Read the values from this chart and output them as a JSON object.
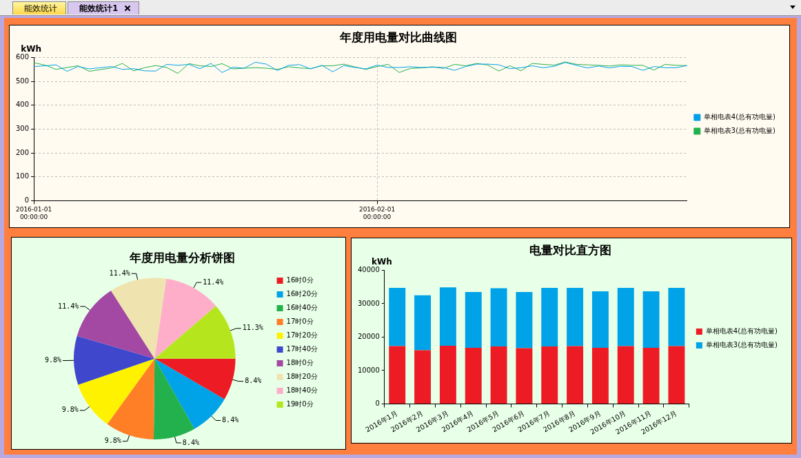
{
  "chart_data": [
    {
      "type": "other",
      "annotations": [
        "能效统计",
        "能效统计1"
      ]
    },
    {
      "type": "line",
      "title": "年度用电量对比曲线图",
      "ylabel": "kWh",
      "x": [
        "2016-01-01",
        "2016-01-02",
        "2016-01-03",
        "2016-01-04",
        "2016-01-05",
        "2016-01-06",
        "2016-01-07",
        "2016-01-08",
        "2016-01-09",
        "2016-01-10",
        "2016-01-11",
        "2016-01-12",
        "2016-01-13",
        "2016-01-14",
        "2016-01-15",
        "2016-01-16",
        "2016-01-17",
        "2016-01-18",
        "2016-01-19",
        "2016-01-20",
        "2016-01-21",
        "2016-01-22",
        "2016-01-23",
        "2016-01-24",
        "2016-01-25",
        "2016-01-26",
        "2016-01-27",
        "2016-01-28",
        "2016-01-29",
        "2016-01-30",
        "2016-01-31",
        "2016-02-01",
        "2016-02-02",
        "2016-02-03",
        "2016-02-04",
        "2016-02-05",
        "2016-02-06",
        "2016-02-07",
        "2016-02-08",
        "2016-02-09",
        "2016-02-10",
        "2016-02-11",
        "2016-02-12",
        "2016-02-13",
        "2016-02-14",
        "2016-02-15",
        "2016-02-16",
        "2016-02-17",
        "2016-02-18",
        "2016-02-19",
        "2016-02-20",
        "2016-02-21",
        "2016-02-22",
        "2016-02-23",
        "2016-02-24",
        "2016-02-25",
        "2016-02-26",
        "2016-02-27",
        "2016-02-28",
        "2016-02-29"
      ],
      "series": [
        {
          "name": "单相电表4(总有功电量)",
          "color": "#00a0e9",
          "values": [
            562,
            565,
            569,
            542,
            562,
            552,
            557,
            562,
            550,
            553,
            544,
            543,
            571,
            567,
            571,
            553,
            575,
            537,
            559,
            555,
            580,
            572,
            545,
            567,
            570,
            552,
            567,
            540,
            566,
            558,
            552,
            568,
            558,
            558,
            561,
            558,
            559,
            558,
            546,
            562,
            572,
            572,
            569,
            553,
            557,
            565,
            557,
            563,
            579,
            567,
            556,
            564,
            556,
            563,
            562,
            546,
            562,
            557,
            557,
            566
          ]
        },
        {
          "name": "单相电表3(总有功电量)",
          "color": "#22b14c",
          "values": [
            578,
            568,
            550,
            558,
            565,
            542,
            549,
            556,
            575,
            544,
            557,
            566,
            558,
            533,
            574,
            565,
            562,
            574,
            552,
            555,
            557,
            555,
            550,
            561,
            556,
            553,
            565,
            565,
            572,
            560,
            550,
            562,
            571,
            537,
            554,
            556,
            561,
            554,
            571,
            565,
            575,
            568,
            543,
            565,
            544,
            575,
            571,
            568,
            581,
            571,
            569,
            567,
            564,
            569,
            567,
            567,
            547,
            571,
            567,
            566
          ]
        }
      ],
      "xlim": [
        "2016-01-01",
        "2016-02-29"
      ],
      "xticks": [
        {
          "value": "2016-01-01",
          "label": "2016-01-01 00:00:00"
        },
        {
          "value": "2016-02-01",
          "label": "2016-02-01 00:00:00"
        }
      ],
      "ylim": [
        0,
        600
      ],
      "yticks": [
        0,
        100,
        200,
        300,
        400,
        500,
        600
      ],
      "grid": true,
      "legend": "right"
    },
    {
      "type": "pie",
      "title": "年度用电量分析饼图",
      "categories": [
        "16时0分",
        "16时20分",
        "16时40分",
        "17时0分",
        "17时20分",
        "17时40分",
        "18时0分",
        "18时20分",
        "18时40分",
        "19时0分"
      ],
      "values": [
        8.4,
        8.4,
        8.4,
        9.8,
        9.8,
        9.8,
        11.4,
        11.4,
        11.4,
        11.3
      ],
      "value_labels": [
        "8.4%",
        "8.4%",
        "8.4%",
        "9.8%",
        "9.8%",
        "9.8%",
        "11.4%",
        "11.4%",
        "11.4%",
        "11.3%"
      ],
      "colors": [
        "#ed1c24",
        "#00a2e8",
        "#22b14c",
        "#ff7f27",
        "#fff200",
        "#3f48cc",
        "#a349a4",
        "#efe4b0",
        "#ffaec9",
        "#b5e61d"
      ],
      "legend": "right"
    },
    {
      "type": "bar",
      "title": "电量对比直方图",
      "ylabel": "kWh",
      "stacked": true,
      "categories": [
        "2016年1月",
        "2016年2月",
        "2016年3月",
        "2016年4月",
        "2016年5月",
        "2016年6月",
        "2016年7月",
        "2016年8月",
        "2016年9月",
        "2016年10月",
        "2016年11月",
        "2016年12月"
      ],
      "series": [
        {
          "name": "单相电表4(总有功电量)",
          "color": "#ed1c24",
          "values": [
            17300,
            16100,
            17400,
            16800,
            17200,
            16700,
            17200,
            17300,
            16800,
            17300,
            16800,
            17300
          ]
        },
        {
          "name": "单相电表3(总有功电量)",
          "color": "#00a2e8",
          "values": [
            17400,
            16400,
            17500,
            16700,
            17400,
            16800,
            17500,
            17400,
            16900,
            17400,
            16900,
            17400
          ]
        }
      ],
      "ylim": [
        0,
        40000
      ],
      "yticks": [
        0,
        10000,
        20000,
        30000,
        40000
      ],
      "legend": "right"
    }
  ]
}
